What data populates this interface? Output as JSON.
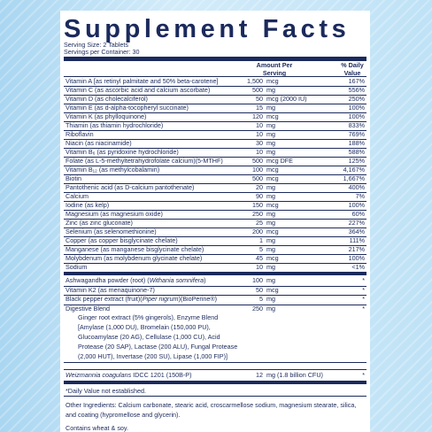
{
  "title": "Supplement Facts",
  "serving_size": "Serving Size: 2 Tablets",
  "servings_per_container": "Servings per Container: 30",
  "header": {
    "amount": "Amount Per Serving",
    "daily_value": "% Daily Value"
  },
  "nutrients": [
    {
      "name": "Vitamin A [as retinyl palmitate and 50% beta-carotene]",
      "amount": "1,500",
      "unit": "mcg",
      "dv": "167%"
    },
    {
      "name": "Vitamin C (as ascorbic acid and calcium ascorbate)",
      "amount": "500",
      "unit": "mg",
      "dv": "556%"
    },
    {
      "name": "Vitamin D (as cholecalciferol)",
      "amount": "50",
      "unit": "mcg (2000 IU)",
      "dv": "250%"
    },
    {
      "name": "Vitamin E (as d-alpha-tocopheryl succinate)",
      "amount": "15",
      "unit": "mg",
      "dv": "100%"
    },
    {
      "name": "Vitamin K (as phylloquinone)",
      "amount": "120",
      "unit": "mcg",
      "dv": "100%"
    },
    {
      "name": "Thiamin (as thiamin hydrochloride)",
      "amount": "10",
      "unit": "mg",
      "dv": "833%"
    },
    {
      "name": "Riboflavin",
      "amount": "10",
      "unit": "mg",
      "dv": "769%"
    },
    {
      "name": "Niacin (as niacinamide)",
      "amount": "30",
      "unit": "mg",
      "dv": "188%"
    },
    {
      "name": "Vitamin B₆ (as pyridoxine hydrochloride)",
      "amount": "10",
      "unit": "mg",
      "dv": "588%"
    },
    {
      "name": "Folate (as L-5-methyltetrahydrofolate calcium)(5-MTHF)",
      "amount": "500",
      "unit": "mcg DFE",
      "dv": "125%"
    },
    {
      "name": "Vitamin B₁₂ (as methylcobalamin)",
      "amount": "100",
      "unit": "mcg",
      "dv": "4,167%"
    },
    {
      "name": "Biotin",
      "amount": "500",
      "unit": "mcg",
      "dv": "1,667%"
    },
    {
      "name": "Pantothenic acid (as D-calcium pantothenate)",
      "amount": "20",
      "unit": "mg",
      "dv": "400%"
    },
    {
      "name": "Calcium",
      "amount": "90",
      "unit": "mg",
      "dv": "7%"
    },
    {
      "name": "Iodine (as kelp)",
      "amount": "150",
      "unit": "mcg",
      "dv": "100%"
    },
    {
      "name": "Magnesium (as magnesium oxide)",
      "amount": "250",
      "unit": "mg",
      "dv": "60%"
    },
    {
      "name": "Zinc (as zinc gluconate)",
      "amount": "25",
      "unit": "mg",
      "dv": "227%"
    },
    {
      "name": "Selenium (as selenomethionine)",
      "amount": "200",
      "unit": "mcg",
      "dv": "364%"
    },
    {
      "name": "Copper (as copper bisglycinate chelate)",
      "amount": "1",
      "unit": "mg",
      "dv": "111%"
    },
    {
      "name": "Manganese (as manganese bisglycinate chelate)",
      "amount": "5",
      "unit": "mg",
      "dv": "217%"
    },
    {
      "name": "Molybdenum (as molybdenum glycinate chelate)",
      "amount": "45",
      "unit": "mcg",
      "dv": "100%"
    },
    {
      "name": "Sodium",
      "amount": "10",
      "unit": "mg",
      "dv": "<1%"
    }
  ],
  "other_items": [
    {
      "name": [
        "Ashwagandha powder (root) (",
        {
          "text": "Withania somnifera",
          "italic": true
        },
        ")"
      ],
      "amount": "100",
      "unit": "mg",
      "dv": "*"
    },
    {
      "name": [
        "Vitamin K2 (as menaquinone-7)"
      ],
      "amount": "50",
      "unit": "mcg",
      "dv": "*"
    },
    {
      "name": [
        "Black pepper extract (fruit)(",
        {
          "text": "Piper nigrum",
          "italic": true
        },
        ")(BioPerine®)"
      ],
      "amount": "5",
      "unit": "mg",
      "dv": "*"
    },
    {
      "name": [
        "Digestive Blend"
      ],
      "amount": "250",
      "unit": "mg",
      "dv": "*",
      "lines": [
        "Ginger root extract (5% gingerols), Enzyme Blend",
        "[Amylase (1,000 DU), Bromelain (150,000 PU),",
        "Glucoamylase (20 AG), Cellulase (1,000 CU), Acid",
        "Protease (20 SAP), Lactase (200 ALU), Fungal Protease",
        "(2,000 HUT), Invertase (200 SU), Lipase (1,000 FIP)]"
      ]
    }
  ],
  "probiotic": {
    "name": [
      {
        "text": "Weizmannia coagulans",
        "italic": true
      },
      " IDCC 1201 (150B-P)"
    ],
    "amount": "12",
    "unit": "mg (1.8 billion CFU)",
    "dv": "*"
  },
  "footnote": "*Daily Value not established.",
  "other_ingredients": "Other Ingredients: Calcium carbonate, stearic acid, croscarmellose sodium, magnesium stearate, silica, and coating  (hypromellose and glycerin).",
  "allergens": "Contains wheat & soy."
}
